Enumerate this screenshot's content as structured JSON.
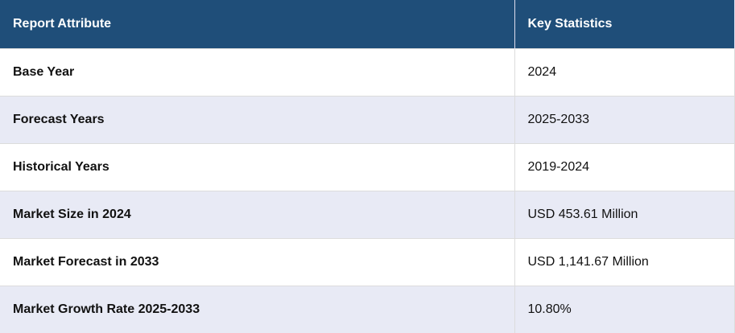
{
  "table": {
    "header": [
      "Report Attribute",
      "Key Statistics"
    ],
    "rows": [
      [
        "Base Year",
        "2024"
      ],
      [
        "Forecast Years",
        "2025-2033"
      ],
      [
        "Historical Years",
        "2019-2024"
      ],
      [
        "Market Size in 2024",
        "USD 453.61 Million"
      ],
      [
        "Market Forecast in 2033",
        "USD 1,141.67 Million"
      ],
      [
        "Market Growth Rate 2025-2033",
        "10.80%"
      ]
    ]
  }
}
